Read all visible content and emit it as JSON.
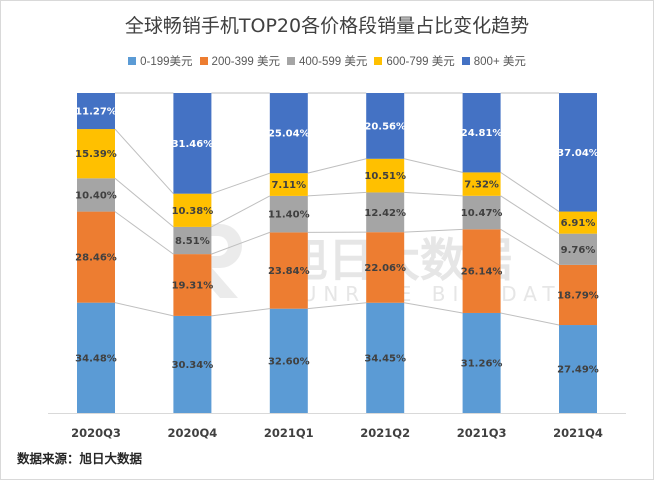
{
  "chart_data": {
    "type": "bar",
    "stacked": true,
    "percent_stacked": true,
    "title": "全球畅销手机TOP20各价格段销量占比变化趋势",
    "xlabel": "",
    "ylabel": "",
    "ylim": [
      0,
      100
    ],
    "grid": false,
    "legend_position": "top",
    "categories": [
      "2020Q3",
      "2020Q4",
      "2021Q1",
      "2021Q2",
      "2021Q3",
      "2021Q4"
    ],
    "series": [
      {
        "name": "0-199美元",
        "color": "#5b9bd5",
        "label_color": "#404040",
        "values": [
          34.48,
          30.34,
          32.6,
          34.45,
          31.26,
          27.49
        ]
      },
      {
        "name": "200-399 美元",
        "color": "#ed7d31",
        "label_color": "#404040",
        "values": [
          28.46,
          19.31,
          23.84,
          22.06,
          26.14,
          18.79
        ]
      },
      {
        "name": "400-599 美元",
        "color": "#a5a5a5",
        "label_color": "#404040",
        "values": [
          10.4,
          8.51,
          11.4,
          12.42,
          10.47,
          9.76
        ]
      },
      {
        "name": "600-799 美元",
        "color": "#ffc000",
        "label_color": "#404040",
        "values": [
          15.39,
          10.38,
          7.11,
          10.51,
          7.32,
          6.91
        ]
      },
      {
        "name": "800+ 美元",
        "color": "#4472c4",
        "label_color": "#ffffff",
        "values": [
          11.27,
          31.46,
          25.04,
          20.56,
          24.81,
          37.04
        ]
      }
    ],
    "value_suffix": "%",
    "series_lines": true,
    "annotations": []
  },
  "watermark": {
    "cn": "旭日大数据",
    "en": "SUNRISE BIG DATA"
  },
  "source": "数据来源：旭日大数据"
}
